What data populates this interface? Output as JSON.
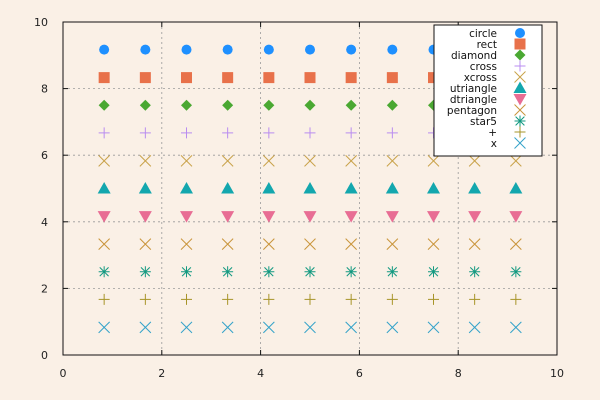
{
  "chart_data": {
    "type": "scatter",
    "title": "",
    "xlabel": "",
    "ylabel": "",
    "xlim": [
      0,
      10
    ],
    "ylim": [
      0,
      10
    ],
    "xticks": [
      0,
      2,
      4,
      6,
      8,
      10
    ],
    "yticks": [
      0,
      2,
      4,
      6,
      8,
      10
    ],
    "grid": true,
    "legend": "top-right",
    "x": [
      0.833,
      1.667,
      2.5,
      3.333,
      4.167,
      5.0,
      5.833,
      6.667,
      7.5,
      8.333,
      9.167
    ],
    "series": [
      {
        "name": "circle",
        "marker": "circle",
        "color": "#1e90ff",
        "y": 9.17
      },
      {
        "name": "rect",
        "marker": "rect",
        "color": "#e8714a",
        "y": 8.33
      },
      {
        "name": "diamond",
        "marker": "diamond",
        "color": "#4aa832",
        "y": 7.5
      },
      {
        "name": "cross",
        "marker": "cross",
        "color": "#b98cf0",
        "y": 6.67
      },
      {
        "name": "xcross",
        "marker": "xcross",
        "color": "#c9a24a",
        "y": 5.83
      },
      {
        "name": "utriangle",
        "marker": "utriangle",
        "color": "#13a7ae",
        "y": 5.0
      },
      {
        "name": "dtriangle",
        "marker": "dtriangle",
        "color": "#e86d94",
        "y": 4.17
      },
      {
        "name": "pentagon",
        "marker": "pentagon",
        "color": "#c9943a",
        "y": 3.33
      },
      {
        "name": "star5",
        "marker": "star5",
        "color": "#129980",
        "y": 2.5
      },
      {
        "name": "+",
        "marker": "plus",
        "color": "#a79428",
        "y": 1.67
      },
      {
        "name": "x",
        "marker": "x",
        "color": "#33a2c9",
        "y": 0.83
      }
    ]
  }
}
